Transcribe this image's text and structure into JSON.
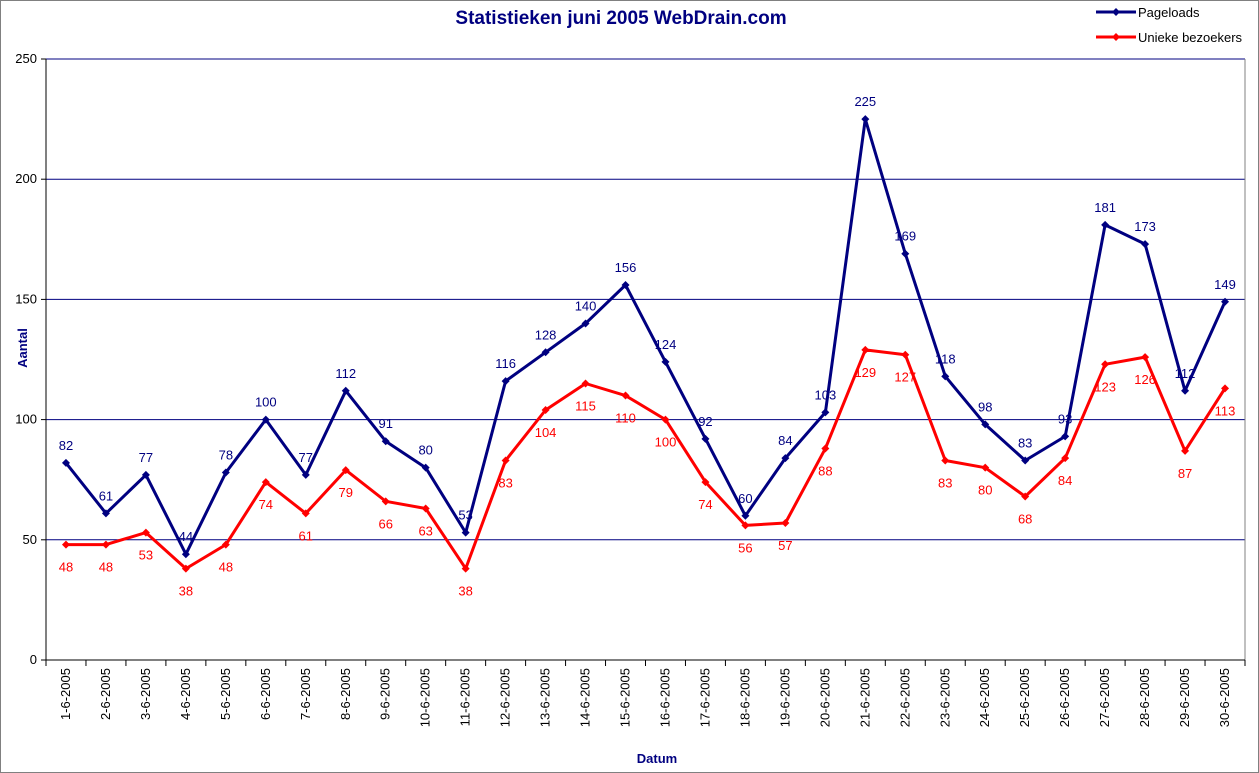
{
  "chart_data": {
    "type": "line",
    "title": "Statistieken juni 2005 WebDrain.com",
    "xlabel": "Datum",
    "ylabel": "Aantal",
    "ylim": [
      0,
      250
    ],
    "yticks": [
      0,
      50,
      100,
      150,
      200,
      250
    ],
    "grid": true,
    "legend_position": "top-right",
    "categories": [
      "1-6-2005",
      "2-6-2005",
      "3-6-2005",
      "4-6-2005",
      "5-6-2005",
      "6-6-2005",
      "7-6-2005",
      "8-6-2005",
      "9-6-2005",
      "10-6-2005",
      "11-6-2005",
      "12-6-2005",
      "13-6-2005",
      "14-6-2005",
      "15-6-2005",
      "16-6-2005",
      "17-6-2005",
      "18-6-2005",
      "19-6-2005",
      "20-6-2005",
      "21-6-2005",
      "22-6-2005",
      "23-6-2005",
      "24-6-2005",
      "25-6-2005",
      "26-6-2005",
      "27-6-2005",
      "28-6-2005",
      "29-6-2005",
      "30-6-2005"
    ],
    "series": [
      {
        "name": "Pageloads",
        "color": "#000080",
        "values": [
          82,
          61,
          77,
          44,
          78,
          100,
          77,
          112,
          91,
          80,
          53,
          116,
          128,
          140,
          156,
          124,
          92,
          60,
          84,
          103,
          225,
          169,
          118,
          98,
          83,
          93,
          181,
          173,
          112,
          149
        ]
      },
      {
        "name": "Unieke bezoekers",
        "color": "#ff0000",
        "values": [
          48,
          48,
          53,
          38,
          48,
          74,
          61,
          79,
          66,
          63,
          38,
          83,
          104,
          115,
          110,
          100,
          74,
          56,
          57,
          88,
          129,
          127,
          83,
          80,
          68,
          84,
          123,
          126,
          87,
          113
        ]
      }
    ]
  }
}
